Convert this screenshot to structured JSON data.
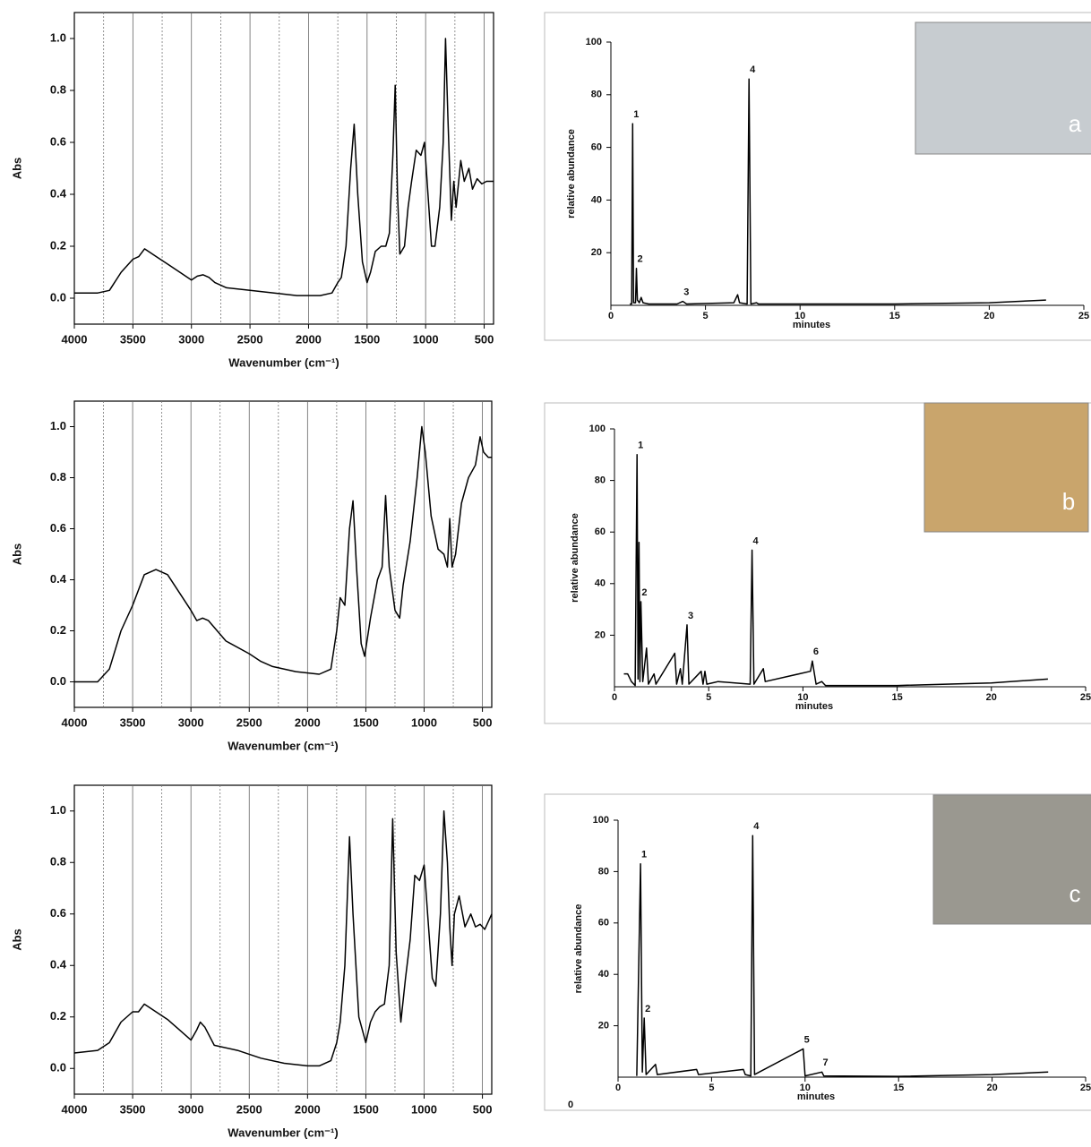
{
  "chart_data": [
    {
      "type": "line",
      "x_label": "Wavenumber (cm⁻¹)",
      "y_label": "Abs",
      "color": "#000000",
      "xlim": [
        4000,
        420
      ],
      "ylim": [
        -0.1,
        1.1
      ],
      "xticks": [
        4000,
        3500,
        3000,
        2500,
        2000,
        1500,
        1000,
        500
      ],
      "x_minor_ticks": [
        3750,
        3250,
        2750,
        2250,
        1750,
        1250,
        750
      ],
      "yticks": [
        {
          "value": 0,
          "label": "0.0"
        },
        0.2,
        0.4,
        0.6,
        0.8,
        {
          "value": 1,
          "label": "1.0"
        }
      ],
      "x": [
        4000,
        3800,
        3700,
        3600,
        3500,
        3450,
        3400,
        3300,
        3200,
        3100,
        3000,
        2950,
        2900,
        2850,
        2800,
        2700,
        2500,
        2200,
        2100,
        1900,
        1800,
        1750,
        1720,
        1680,
        1640,
        1610,
        1580,
        1540,
        1500,
        1470,
        1430,
        1380,
        1340,
        1310,
        1280,
        1260,
        1240,
        1220,
        1180,
        1150,
        1120,
        1080,
        1040,
        1010,
        980,
        950,
        920,
        880,
        850,
        830,
        810,
        780,
        760,
        740,
        700,
        670,
        630,
        600,
        560,
        520,
        480,
        420
      ],
      "values": [
        0.02,
        0.02,
        0.03,
        0.1,
        0.15,
        0.16,
        0.19,
        0.16,
        0.13,
        0.1,
        0.07,
        0.085,
        0.09,
        0.08,
        0.06,
        0.04,
        0.03,
        0.015,
        0.01,
        0.01,
        0.02,
        0.06,
        0.08,
        0.2,
        0.5,
        0.67,
        0.4,
        0.14,
        0.06,
        0.1,
        0.18,
        0.2,
        0.2,
        0.25,
        0.55,
        0.82,
        0.4,
        0.17,
        0.2,
        0.35,
        0.45,
        0.57,
        0.55,
        0.6,
        0.4,
        0.2,
        0.2,
        0.35,
        0.6,
        1.0,
        0.7,
        0.3,
        0.45,
        0.35,
        0.53,
        0.45,
        0.5,
        0.42,
        0.46,
        0.44,
        0.45,
        0.45
      ]
    },
    {
      "type": "line",
      "x_label": "Wavenumber (cm⁻¹)",
      "y_label": "Abs",
      "color": "#000000",
      "xlim": [
        4000,
        420
      ],
      "ylim": [
        -0.1,
        1.1
      ],
      "xticks": [
        4000,
        3500,
        3000,
        2500,
        2000,
        1500,
        1000,
        500
      ],
      "x_minor_ticks": [
        3750,
        3250,
        2750,
        2250,
        1750,
        1250,
        750
      ],
      "yticks": [
        {
          "value": 0,
          "label": "0.0"
        },
        0.2,
        0.4,
        0.6,
        0.8,
        {
          "value": 1,
          "label": "1.0"
        }
      ],
      "x": [
        4000,
        3800,
        3700,
        3600,
        3500,
        3400,
        3300,
        3200,
        3100,
        3000,
        2950,
        2900,
        2850,
        2700,
        2500,
        2400,
        2300,
        2100,
        1900,
        1800,
        1750,
        1720,
        1680,
        1640,
        1610,
        1580,
        1540,
        1510,
        1460,
        1400,
        1360,
        1330,
        1300,
        1250,
        1210,
        1180,
        1120,
        1060,
        1020,
        990,
        940,
        880,
        830,
        800,
        780,
        760,
        730,
        680,
        620,
        560,
        520,
        490,
        450,
        420
      ],
      "values": [
        0.0,
        0.0,
        0.05,
        0.2,
        0.3,
        0.42,
        0.44,
        0.42,
        0.35,
        0.28,
        0.24,
        0.25,
        0.24,
        0.16,
        0.11,
        0.08,
        0.06,
        0.04,
        0.03,
        0.05,
        0.2,
        0.33,
        0.3,
        0.6,
        0.71,
        0.45,
        0.15,
        0.1,
        0.25,
        0.4,
        0.45,
        0.73,
        0.45,
        0.28,
        0.25,
        0.38,
        0.55,
        0.8,
        1.0,
        0.9,
        0.65,
        0.52,
        0.5,
        0.45,
        0.64,
        0.45,
        0.5,
        0.7,
        0.8,
        0.85,
        0.96,
        0.9,
        0.88,
        0.88
      ]
    },
    {
      "type": "line",
      "x_label": "Wavenumber (cm⁻¹)",
      "y_label": "Abs",
      "color": "#000000",
      "xlim": [
        4000,
        420
      ],
      "ylim": [
        -0.1,
        1.1
      ],
      "xticks": [
        4000,
        3500,
        3000,
        2500,
        2000,
        1500,
        1000,
        500
      ],
      "x_minor_ticks": [
        3750,
        3250,
        2750,
        2250,
        1750,
        1250,
        750
      ],
      "yticks": [
        {
          "value": 0,
          "label": "0.0"
        },
        0.2,
        0.4,
        0.6,
        0.8,
        {
          "value": 1,
          "label": "1.0"
        }
      ],
      "x": [
        4000,
        3800,
        3700,
        3600,
        3500,
        3450,
        3400,
        3300,
        3200,
        3100,
        3000,
        2950,
        2920,
        2880,
        2800,
        2600,
        2400,
        2200,
        2000,
        1900,
        1800,
        1750,
        1720,
        1680,
        1640,
        1610,
        1560,
        1500,
        1460,
        1420,
        1380,
        1340,
        1300,
        1270,
        1240,
        1200,
        1160,
        1120,
        1080,
        1040,
        1000,
        970,
        930,
        900,
        860,
        830,
        800,
        780,
        760,
        740,
        700,
        650,
        600,
        560,
        520,
        480,
        420
      ],
      "values": [
        0.06,
        0.07,
        0.1,
        0.18,
        0.22,
        0.22,
        0.25,
        0.22,
        0.19,
        0.15,
        0.11,
        0.15,
        0.18,
        0.16,
        0.09,
        0.07,
        0.04,
        0.02,
        0.01,
        0.01,
        0.03,
        0.1,
        0.18,
        0.4,
        0.9,
        0.6,
        0.2,
        0.1,
        0.18,
        0.22,
        0.24,
        0.25,
        0.4,
        0.97,
        0.45,
        0.18,
        0.35,
        0.5,
        0.75,
        0.73,
        0.79,
        0.6,
        0.35,
        0.32,
        0.6,
        1.0,
        0.8,
        0.55,
        0.4,
        0.6,
        0.67,
        0.55,
        0.6,
        0.55,
        0.56,
        0.54,
        0.6
      ]
    },
    {
      "type": "line",
      "x_label": "minutes",
      "y_label": "relative abundance",
      "color": "#000000",
      "xlim": [
        0,
        25
      ],
      "ylim": [
        0,
        100
      ],
      "xticks": [
        0,
        5,
        10,
        15,
        20,
        25
      ],
      "yticks": [
        20,
        40,
        60,
        80,
        100
      ],
      "x": [
        1.0,
        1.1,
        1.15,
        1.2,
        1.3,
        1.35,
        1.4,
        1.5,
        1.6,
        1.7,
        2.0,
        3.5,
        3.8,
        4.0,
        6.5,
        6.7,
        6.8,
        7.2,
        7.3,
        7.4,
        7.7,
        7.8,
        15,
        20,
        23
      ],
      "values": [
        0.5,
        0.5,
        69,
        1,
        1,
        14,
        2,
        1,
        3,
        1,
        0.5,
        0.5,
        1.5,
        0.5,
        1,
        4,
        1,
        0.5,
        86,
        0.5,
        1,
        0.5,
        0.5,
        1,
        2
      ],
      "annotations": [
        {
          "label": "1",
          "x": 1.15,
          "y": 69
        },
        {
          "label": "2",
          "x": 1.35,
          "y": 14
        },
        {
          "label": "3",
          "x": 3.8,
          "y": 1.5
        },
        {
          "label": "4",
          "x": 7.3,
          "y": 86
        }
      ],
      "inset_label": "a",
      "inset_color": "#c7ccd0"
    },
    {
      "type": "line",
      "x_label": "minutes",
      "y_label": "relative abundance",
      "color": "#000000",
      "xlim": [
        0,
        25
      ],
      "ylim": [
        0,
        100
      ],
      "xticks": [
        0,
        5,
        10,
        15,
        20,
        25
      ],
      "yticks": [
        20,
        40,
        60,
        80,
        100
      ],
      "x": [
        0.5,
        0.7,
        0.9,
        1.1,
        1.2,
        1.25,
        1.3,
        1.35,
        1.4,
        1.5,
        1.7,
        1.8,
        2.1,
        2.2,
        3.2,
        3.3,
        3.5,
        3.6,
        3.85,
        3.95,
        4.6,
        4.7,
        4.8,
        4.9,
        5.5,
        7.2,
        7.3,
        7.4,
        7.9,
        8.0,
        10.4,
        10.5,
        10.7,
        11.0,
        11.2,
        15,
        20,
        23
      ],
      "values": [
        5,
        5,
        2,
        0.5,
        90,
        3,
        56,
        2,
        33,
        2,
        15,
        1,
        5,
        1,
        13,
        1,
        7,
        1,
        24,
        1,
        6,
        1,
        6,
        1,
        2,
        1,
        53,
        1,
        7,
        2,
        6,
        10,
        1,
        2,
        0.5,
        0.5,
        1.5,
        3
      ],
      "annotations": [
        {
          "label": "1",
          "x": 1.2,
          "y": 90
        },
        {
          "label": "2",
          "x": 1.4,
          "y": 33
        },
        {
          "label": "3",
          "x": 3.85,
          "y": 24
        },
        {
          "label": "4",
          "x": 7.3,
          "y": 53
        },
        {
          "label": "6",
          "x": 10.5,
          "y": 10
        }
      ],
      "inset_label": "b",
      "inset_color": "#c9a56c"
    },
    {
      "type": "line",
      "x_label": "minutes",
      "y_label": "relative abundance",
      "color": "#000000",
      "xlim": [
        0,
        25
      ],
      "ylim": [
        0,
        100
      ],
      "xticks": [
        0,
        5,
        10,
        15,
        20,
        25
      ],
      "yticks": [
        20,
        40,
        60,
        80,
        100
      ],
      "x": [
        1.0,
        1.2,
        1.3,
        1.4,
        1.5,
        2.0,
        2.1,
        4.2,
        4.3,
        6.7,
        6.8,
        7.1,
        7.2,
        7.3,
        9.9,
        10.0,
        10.9,
        11.0,
        15,
        20,
        23
      ],
      "values": [
        0.5,
        83,
        2,
        23,
        1,
        5,
        1,
        3,
        1,
        3,
        1,
        0.5,
        94,
        1,
        11,
        0.5,
        2,
        0.5,
        0.3,
        1,
        2
      ],
      "annotations": [
        {
          "label": "1",
          "x": 1.2,
          "y": 83
        },
        {
          "label": "2",
          "x": 1.4,
          "y": 23
        },
        {
          "label": "4",
          "x": 7.2,
          "y": 94
        },
        {
          "label": "5",
          "x": 9.9,
          "y": 11
        },
        {
          "label": "7",
          "x": 10.9,
          "y": 2
        }
      ],
      "corner_label": "0",
      "inset_label": "c",
      "inset_color": "#9a9890"
    }
  ]
}
